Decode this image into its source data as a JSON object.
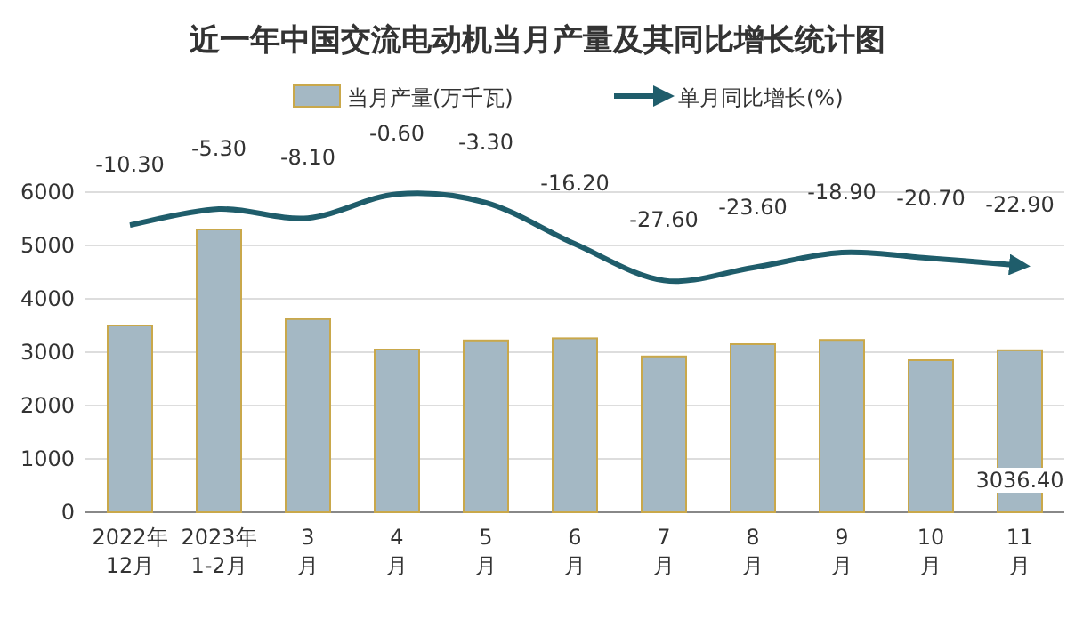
{
  "chart_data": {
    "type": "bar",
    "title": "近一年中国交流电动机当月产量及其同比增长统计图",
    "categories": [
      "2022年\n12月",
      "2023年\n1-2月",
      "3\n月",
      "4\n月",
      "5\n月",
      "6\n月",
      "7\n月",
      "8\n月",
      "9\n月",
      "10\n月",
      "11\n月"
    ],
    "series": [
      {
        "name": "当月产量(万千瓦)",
        "color": "#a4b8c4",
        "values": [
          3500,
          5300,
          3620,
          3050,
          3220,
          3260,
          2920,
          3150,
          3230,
          2850,
          3036.4
        ],
        "value_labels": [
          null,
          null,
          null,
          null,
          null,
          null,
          null,
          null,
          null,
          null,
          "3036.40"
        ]
      },
      {
        "name": "单月同比增长(%)",
        "type": "line",
        "axis": "y2",
        "color": "#1f5d6b",
        "values": [
          -10.3,
          -5.3,
          -8.1,
          -0.6,
          -3.3,
          -16.2,
          -27.6,
          -23.6,
          -18.9,
          -20.7,
          -22.9
        ],
        "value_labels": [
          "-10.30",
          "-5.30",
          "-8.10",
          "-0.60",
          "-3.30",
          "-16.20",
          "-27.60",
          "-23.60",
          "-18.90",
          "-20.70",
          "-22.90"
        ]
      }
    ],
    "ylim": [
      0,
      6000
    ],
    "yticks": [
      0,
      1000,
      2000,
      3000,
      4000,
      5000,
      6000
    ],
    "y2lim": [
      -100,
      0
    ],
    "tick_labels": "xy",
    "grid": "y",
    "legend": "top"
  }
}
